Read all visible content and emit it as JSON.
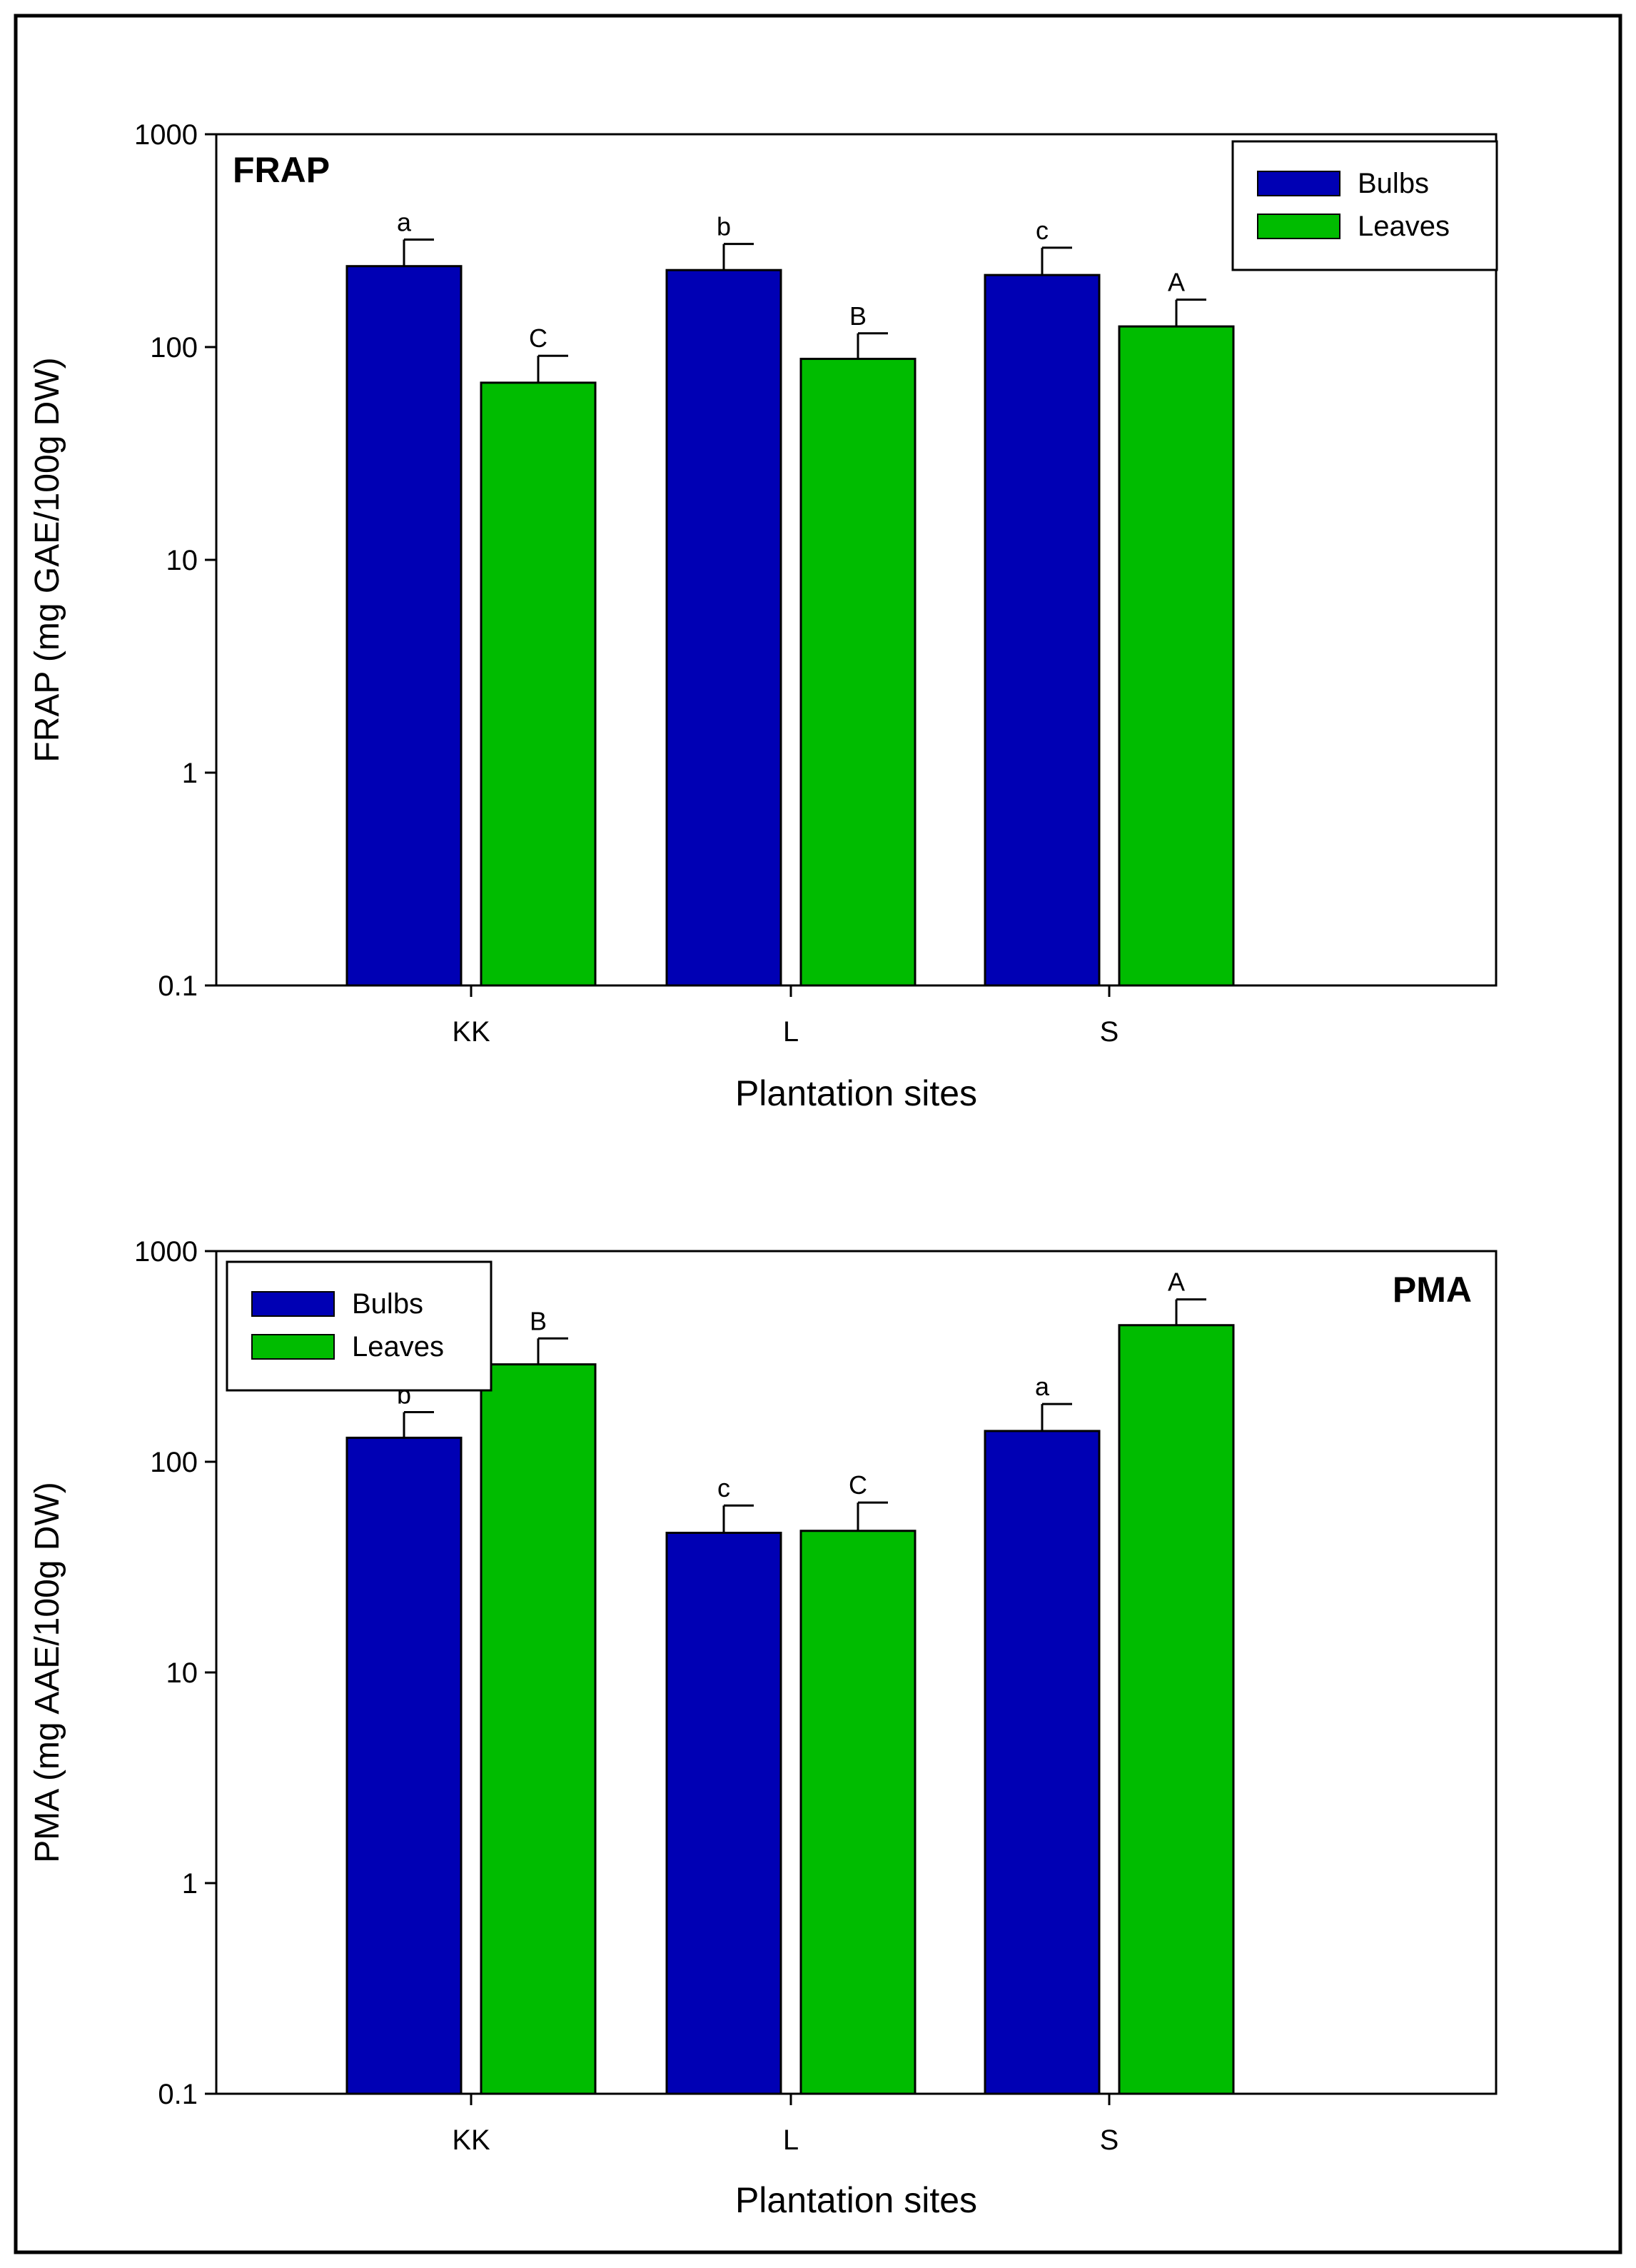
{
  "colors": {
    "bulbs": "#0000B4",
    "leaves": "#00BC00",
    "axis": "#000000"
  },
  "chart_data": [
    {
      "type": "bar",
      "panel_label": "FRAP",
      "xlabel": "Plantation sites",
      "ylabel": "FRAP (mg GAE/100g DW)",
      "yscale": "log",
      "ylim": [
        0.1,
        1000
      ],
      "yticks": [
        0.1,
        1,
        10,
        100,
        1000
      ],
      "ytick_labels": [
        "0.1",
        "1",
        "10",
        "100",
        "1000"
      ],
      "categories": [
        "KK",
        "L",
        "S"
      ],
      "legend_position": "top-right",
      "series": [
        {
          "name": "Bulbs",
          "color_key": "bulbs",
          "values": [
            240,
            230,
            218
          ],
          "errors": [
            80,
            75,
            75
          ],
          "letters": [
            "a",
            "b",
            "c"
          ]
        },
        {
          "name": "Leaves",
          "color_key": "leaves",
          "values": [
            68,
            88,
            125
          ],
          "errors": [
            23,
            28,
            42
          ],
          "letters": [
            "C",
            "B",
            "A"
          ]
        }
      ]
    },
    {
      "type": "bar",
      "panel_label": "PMA",
      "xlabel": "Plantation sites",
      "ylabel": "PMA (mg AAE/100g DW)",
      "yscale": "log",
      "ylim": [
        0.1,
        1000
      ],
      "yticks": [
        0.1,
        1,
        10,
        100,
        1000
      ],
      "ytick_labels": [
        "0.1",
        "1",
        "10",
        "100",
        "1000"
      ],
      "categories": [
        "KK",
        "L",
        "S"
      ],
      "legend_position": "top-left",
      "series": [
        {
          "name": "Bulbs",
          "color_key": "bulbs",
          "values": [
            130,
            46,
            140
          ],
          "errors": [
            42,
            16,
            48
          ],
          "letters": [
            "b",
            "c",
            "a"
          ]
        },
        {
          "name": "Leaves",
          "color_key": "leaves",
          "values": [
            290,
            47,
            445
          ],
          "errors": [
            95,
            17,
            145
          ],
          "letters": [
            "B",
            "C",
            "A"
          ]
        }
      ]
    }
  ]
}
